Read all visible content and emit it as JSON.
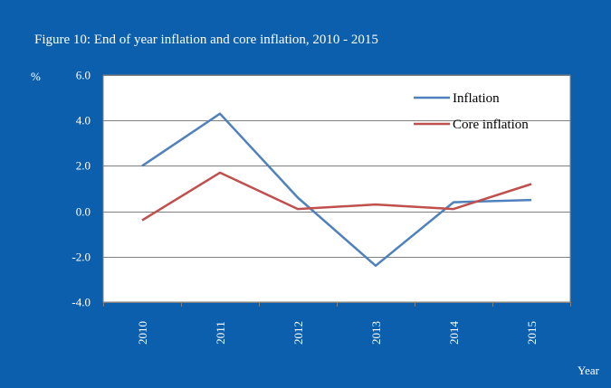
{
  "figure": {
    "title": "Figure 10: End of year inflation and core inflation, 2010 - 2015",
    "y_unit": "%",
    "x_unit": "Year",
    "background_color": "#0c5fad",
    "plot_background_color": "#ffffff",
    "grid_color": "#808080"
  },
  "chart_data": {
    "type": "line",
    "title": "Figure 10: End of year inflation and core inflation, 2010 - 2015",
    "xlabel": "Year",
    "ylabel": "%",
    "categories": [
      "2010",
      "2011",
      "2012",
      "2013",
      "2014",
      "2015"
    ],
    "ylim": [
      -4.0,
      6.0
    ],
    "yticks": [
      "6.0",
      "4.0",
      "2.0",
      "0.0",
      "-2.0",
      "-4.0"
    ],
    "grid": true,
    "legend_position": "top-right",
    "series": [
      {
        "name": "Inflation",
        "color": "#4f81bd",
        "values": [
          2.0,
          4.3,
          0.6,
          -2.4,
          0.4,
          0.5
        ]
      },
      {
        "name": "Core inflation",
        "color": "#c0504d",
        "values": [
          -0.4,
          1.7,
          0.1,
          0.3,
          0.1,
          1.2
        ]
      }
    ]
  }
}
